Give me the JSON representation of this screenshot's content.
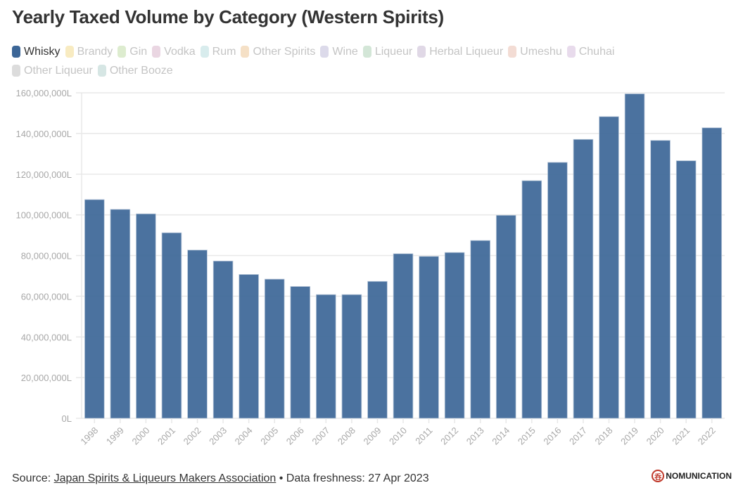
{
  "title": "Yearly Taxed Volume by Category (Western Spirits)",
  "legend": [
    {
      "label": "Whisky",
      "color": "#3c6697",
      "active": true
    },
    {
      "label": "Brandy",
      "color": "#f8ebc1",
      "active": false
    },
    {
      "label": "Gin",
      "color": "#ddeccf",
      "active": false
    },
    {
      "label": "Vodka",
      "color": "#ead6e2",
      "active": false
    },
    {
      "label": "Rum",
      "color": "#d8eced",
      "active": false
    },
    {
      "label": "Other Spirits",
      "color": "#f5e0c6",
      "active": false
    },
    {
      "label": "Wine",
      "color": "#dcdaea",
      "active": false
    },
    {
      "label": "Liqueur",
      "color": "#d3e6d7",
      "active": false
    },
    {
      "label": "Herbal Liqueur",
      "color": "#e0d8e6",
      "active": false
    },
    {
      "label": "Umeshu",
      "color": "#f3dcd4",
      "active": false
    },
    {
      "label": "Chuhai",
      "color": "#e8dbec",
      "active": false
    },
    {
      "label": "Other Liqueur",
      "color": "#dcdcdc",
      "active": false
    },
    {
      "label": "Other Booze",
      "color": "#d6e6e4",
      "active": false
    }
  ],
  "chart_data": {
    "type": "bar",
    "title": "Yearly Taxed Volume by Category (Western Spirits)",
    "xlabel": "",
    "ylabel": "",
    "ylim": [
      0,
      160000000
    ],
    "yticks": [
      0,
      20000000,
      40000000,
      60000000,
      80000000,
      100000000,
      120000000,
      140000000,
      160000000
    ],
    "ytick_labels": [
      "0L",
      "20,000,000L",
      "40,000,000L",
      "60,000,000L",
      "80,000,000L",
      "100,000,000L",
      "120,000,000L",
      "140,000,000L",
      "160,000,000L"
    ],
    "grid": true,
    "categories": [
      "1998",
      "1999",
      "2000",
      "2001",
      "2002",
      "2003",
      "2004",
      "2005",
      "2006",
      "2007",
      "2008",
      "2009",
      "2010",
      "2011",
      "2012",
      "2013",
      "2014",
      "2015",
      "2016",
      "2017",
      "2018",
      "2019",
      "2020",
      "2021",
      "2022"
    ],
    "series": [
      {
        "name": "Whisky",
        "color": "#3c6697",
        "values": [
          107500000,
          102700000,
          100500000,
          91200000,
          82700000,
          77300000,
          70700000,
          68400000,
          64800000,
          60800000,
          60800000,
          67300000,
          80900000,
          79600000,
          81500000,
          87400000,
          99800000,
          116800000,
          125800000,
          137100000,
          148300000,
          159500000,
          136600000,
          126600000,
          142800000
        ]
      }
    ]
  },
  "footer": {
    "source_prefix": "Source: ",
    "source_link": "Japan Spirits & Liqueurs Makers Association",
    "freshness": " • Data freshness: 27 Apr 2023"
  },
  "brand": {
    "logo_glyph": "呑",
    "name": "NOMUNICATION"
  }
}
